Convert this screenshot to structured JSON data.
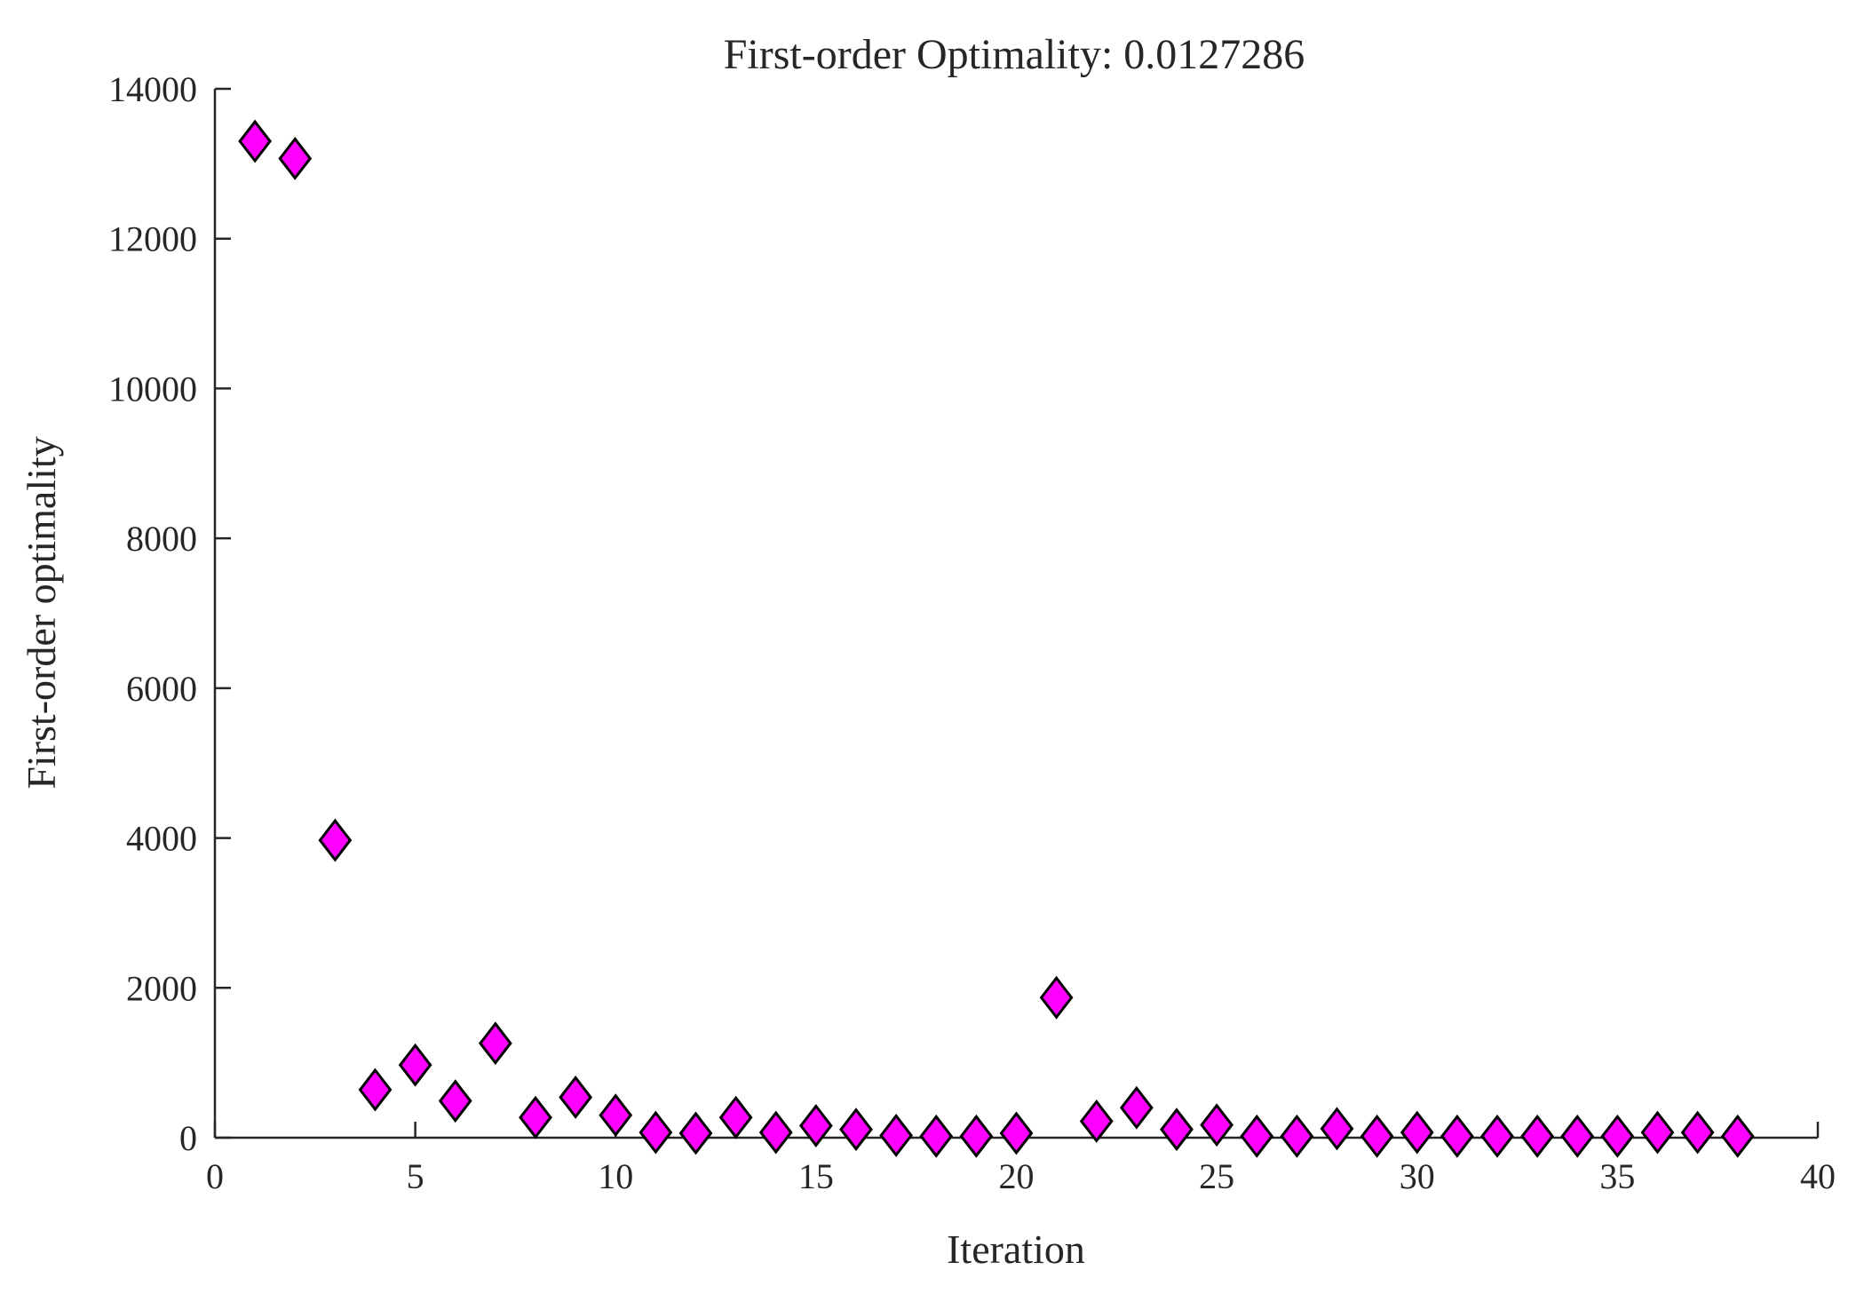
{
  "chart_data": {
    "type": "scatter",
    "title": "First-order Optimality: 0.0127286",
    "xlabel": "Iteration",
    "ylabel": "First-order optimality",
    "xlim": [
      0,
      40
    ],
    "ylim": [
      0,
      14000
    ],
    "xticks": [
      0,
      5,
      10,
      15,
      20,
      25,
      30,
      35,
      40
    ],
    "yticks": [
      0,
      2000,
      4000,
      6000,
      8000,
      10000,
      12000,
      14000
    ],
    "grid": false,
    "marker": "diamond",
    "marker_color": "#ff00ff",
    "series": [
      {
        "x": [
          1,
          2,
          3,
          4,
          5,
          6,
          7,
          8,
          9,
          10,
          11,
          12,
          13,
          14,
          15,
          16,
          17,
          18,
          19,
          20,
          21,
          22,
          23,
          24,
          25,
          26,
          27,
          28,
          29,
          30,
          31,
          32,
          33,
          34,
          35,
          36,
          37,
          38
        ],
        "y": [
          13300,
          13070,
          3970,
          640,
          970,
          490,
          1260,
          270,
          540,
          300,
          70,
          60,
          270,
          70,
          160,
          110,
          30,
          20,
          20,
          60,
          1870,
          220,
          400,
          110,
          170,
          20,
          20,
          120,
          20,
          70,
          20,
          20,
          20,
          20,
          20,
          70,
          70,
          20
        ]
      }
    ]
  }
}
